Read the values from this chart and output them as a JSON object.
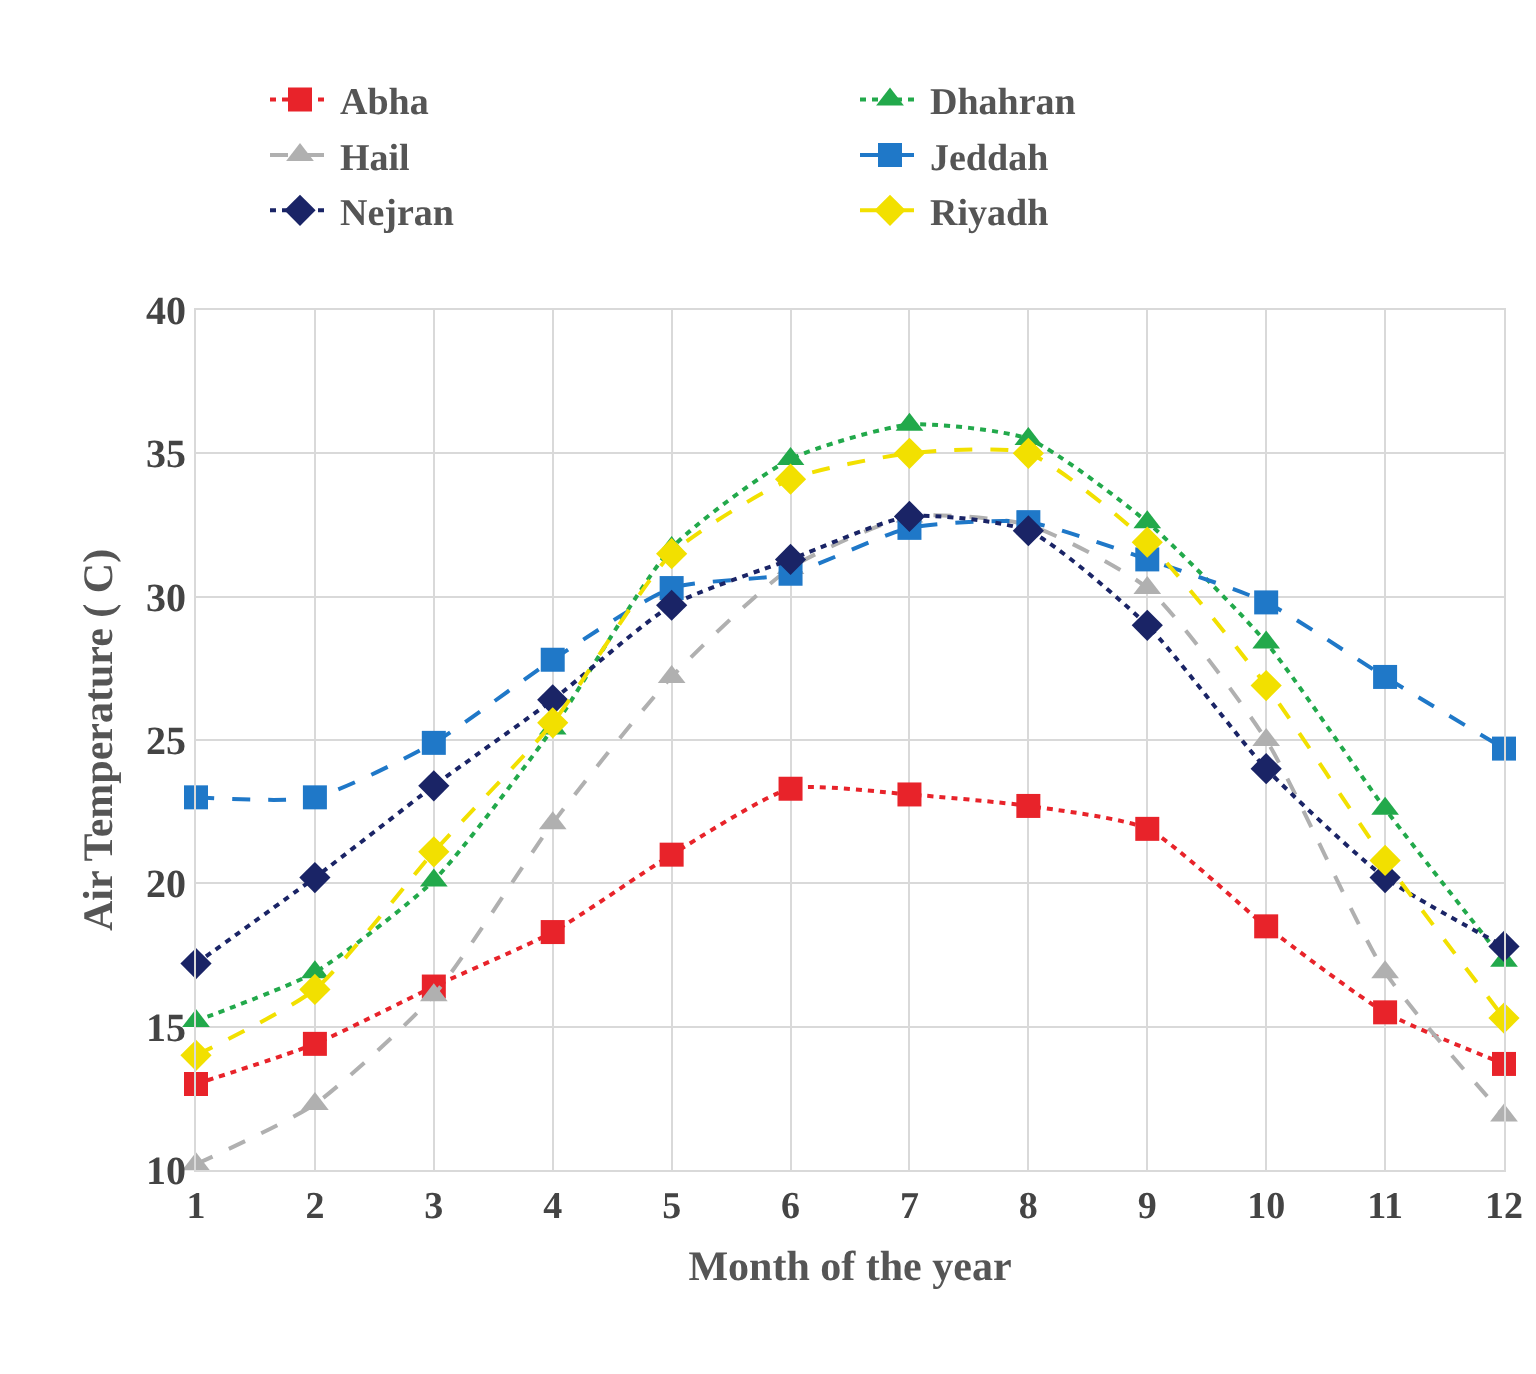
{
  "chart_data": {
    "type": "line",
    "xlabel": "Month of the year",
    "ylabel": "Air Temperature ( C)",
    "x": [
      1,
      2,
      3,
      4,
      5,
      6,
      7,
      8,
      9,
      10,
      11,
      12
    ],
    "series": [
      {
        "name": "Abha",
        "color": "#e8232a",
        "marker": "square",
        "line_style": "dotted",
        "values": [
          13.0,
          14.4,
          16.4,
          18.3,
          21.0,
          23.3,
          23.1,
          22.7,
          21.9,
          18.5,
          15.5,
          13.7
        ]
      },
      {
        "name": "Dhahran",
        "color": "#22a94b",
        "marker": "triangle",
        "line_style": "dotted",
        "values": [
          15.2,
          16.9,
          20.1,
          25.4,
          31.7,
          34.8,
          36.0,
          35.5,
          32.6,
          28.4,
          22.6,
          17.3
        ]
      },
      {
        "name": "Hail",
        "color": "#b0b0b0",
        "marker": "triangle",
        "line_style": "dashed",
        "values": [
          10.2,
          12.3,
          16.1,
          22.1,
          27.2,
          31.0,
          32.8,
          32.5,
          30.3,
          25.0,
          16.9,
          11.9
        ]
      },
      {
        "name": "Jeddah",
        "color": "#1f78c8",
        "marker": "square",
        "line_style": "dashed",
        "values": [
          23.0,
          23.0,
          24.9,
          27.8,
          30.3,
          30.8,
          32.4,
          32.6,
          31.3,
          29.8,
          27.2,
          24.7
        ]
      },
      {
        "name": "Nejran",
        "color": "#1a2466",
        "marker": "diamond",
        "line_style": "dotted",
        "values": [
          17.2,
          20.2,
          23.4,
          26.4,
          29.7,
          31.3,
          32.8,
          32.3,
          29.0,
          24.0,
          20.2,
          17.8
        ]
      },
      {
        "name": "Riyadh",
        "color": "#f2e000",
        "marker": "diamond",
        "line_style": "dashed",
        "values": [
          14.0,
          16.3,
          21.1,
          25.6,
          31.5,
          34.1,
          35.0,
          35.0,
          31.9,
          26.9,
          20.8,
          15.3
        ]
      }
    ],
    "xlim": [
      1,
      12
    ],
    "xticks": [
      1,
      2,
      3,
      4,
      5,
      6,
      7,
      8,
      9,
      10,
      11,
      12
    ],
    "ylim": [
      10,
      40
    ],
    "yticks": [
      10,
      15,
      20,
      25,
      30,
      35,
      40
    ],
    "grid": true,
    "legend": "top"
  }
}
